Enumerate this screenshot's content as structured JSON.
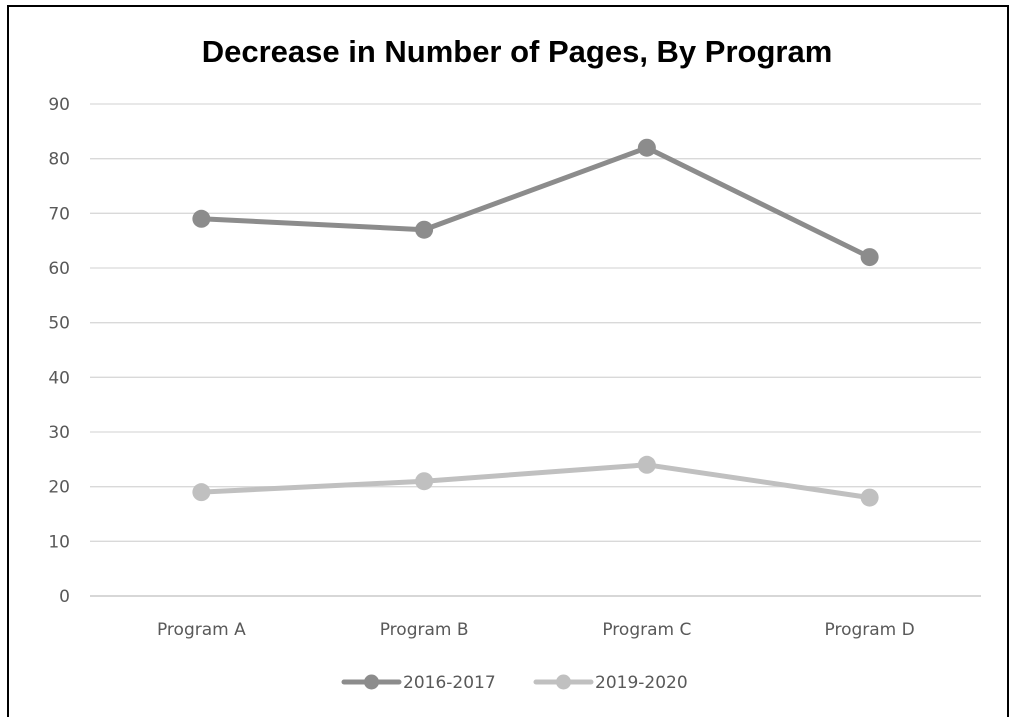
{
  "chart_data": {
    "type": "line",
    "title": "Decrease in Number of Pages, By Program",
    "categories": [
      "Program A",
      "Program B",
      "Program C",
      "Program D"
    ],
    "series": [
      {
        "name": "2016-2017",
        "values": [
          69,
          67,
          82,
          62
        ],
        "color": "#8c8c8c"
      },
      {
        "name": "2019-2020",
        "values": [
          19,
          21,
          24,
          18
        ],
        "color": "#c0c0c0"
      }
    ],
    "ylim": [
      0,
      90
    ],
    "yticks": [
      0,
      10,
      20,
      30,
      40,
      50,
      60,
      70,
      80,
      90
    ],
    "grid": true,
    "legend": "bottom"
  },
  "colors": {
    "gridline": "#d9d9d9",
    "axis": "#bfbfbf",
    "frame": "#000000"
  }
}
